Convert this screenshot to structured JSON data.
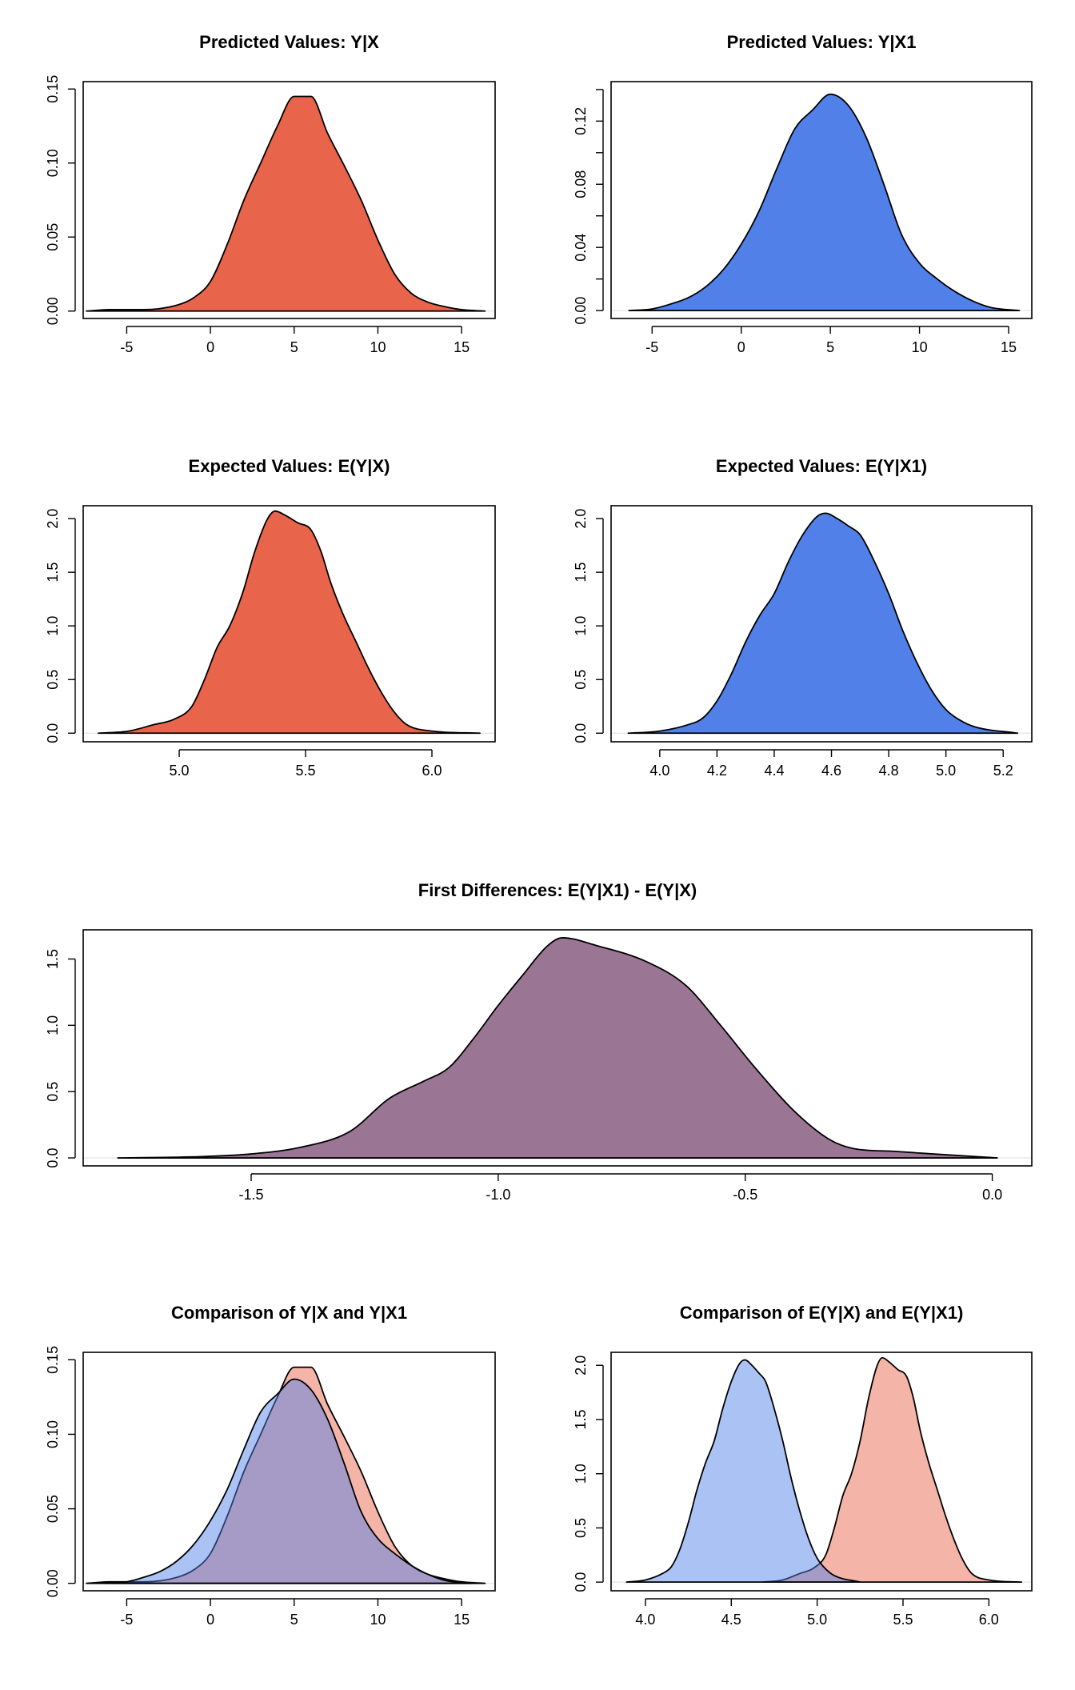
{
  "chart_data": [
    {
      "id": "pv_yx",
      "type": "area",
      "title": "Predicted Values: Y|X",
      "xlabel": "",
      "ylabel": "",
      "xlim": [
        -7.6,
        17.0
      ],
      "ylim": [
        -0.005,
        0.155
      ],
      "xticks": [
        -5,
        0,
        5,
        10,
        15
      ],
      "yticks": [
        0.0,
        0.05,
        0.1,
        0.15
      ],
      "ytick_labels": [
        "0.00",
        "0.05",
        "0.10",
        "0.15"
      ],
      "series": [
        {
          "color": "#e8644a",
          "x": [
            -7.4,
            -6,
            -4,
            -2,
            -1,
            0,
            1,
            2,
            3,
            4,
            5,
            6,
            7,
            8,
            9,
            10,
            11,
            12,
            13,
            14,
            15,
            16.4
          ],
          "y": [
            0.0,
            0.001,
            0.001,
            0.004,
            0.009,
            0.02,
            0.045,
            0.075,
            0.1,
            0.125,
            0.145,
            0.145,
            0.12,
            0.098,
            0.075,
            0.048,
            0.025,
            0.012,
            0.006,
            0.003,
            0.001,
            0.0
          ]
        }
      ]
    },
    {
      "id": "pv_yx1",
      "type": "area",
      "title": "Predicted Values: Y|X1",
      "xlabel": "",
      "ylabel": "",
      "xlim": [
        -7.3,
        16.3
      ],
      "ylim": [
        -0.005,
        0.145
      ],
      "xticks": [
        -5,
        0,
        5,
        10,
        15
      ],
      "yticks": [
        0.0,
        0.02,
        0.04,
        0.06,
        0.08,
        0.1,
        0.12,
        0.14
      ],
      "ytick_labels": [
        "0.00",
        "",
        "0.04",
        "",
        "0.08",
        "",
        "0.12",
        ""
      ],
      "series": [
        {
          "color": "#5080e8",
          "x": [
            -6.3,
            -5,
            -4,
            -3,
            -2,
            -1,
            0,
            1,
            2,
            3,
            4,
            5,
            6,
            7,
            8,
            9,
            10,
            11,
            12,
            13,
            14,
            15.6
          ],
          "y": [
            0.0,
            0.001,
            0.004,
            0.008,
            0.015,
            0.026,
            0.042,
            0.063,
            0.09,
            0.115,
            0.127,
            0.137,
            0.13,
            0.11,
            0.08,
            0.048,
            0.03,
            0.02,
            0.012,
            0.006,
            0.002,
            0.0
          ]
        }
      ]
    },
    {
      "id": "ev_yx",
      "type": "area",
      "title": "Expected Values: E(Y|X)",
      "xlabel": "",
      "ylabel": "",
      "xlim": [
        4.62,
        6.25
      ],
      "ylim": [
        -0.08,
        2.12
      ],
      "xticks": [
        5.0,
        5.5,
        6.0
      ],
      "xtick_labels": [
        "5.0",
        "5.5",
        "6.0"
      ],
      "yticks": [
        0.0,
        0.5,
        1.0,
        1.5,
        2.0
      ],
      "ytick_labels": [
        "0.0",
        "0.5",
        "1.0",
        "1.5",
        "2.0"
      ],
      "series": [
        {
          "color": "#e8644a",
          "x": [
            4.68,
            4.8,
            4.9,
            4.98,
            5.05,
            5.1,
            5.15,
            5.2,
            5.25,
            5.3,
            5.35,
            5.38,
            5.42,
            5.47,
            5.52,
            5.56,
            5.6,
            5.65,
            5.7,
            5.75,
            5.8,
            5.85,
            5.9,
            6.0,
            6.19
          ],
          "y": [
            0.0,
            0.02,
            0.08,
            0.13,
            0.25,
            0.5,
            0.8,
            1.0,
            1.3,
            1.7,
            2.0,
            2.07,
            2.03,
            1.96,
            1.9,
            1.7,
            1.4,
            1.1,
            0.85,
            0.6,
            0.38,
            0.2,
            0.08,
            0.02,
            0.0
          ]
        }
      ]
    },
    {
      "id": "ev_yx1",
      "type": "area",
      "title": "Expected Values: E(Y|X1)",
      "xlabel": "",
      "ylabel": "",
      "xlim": [
        3.83,
        5.3
      ],
      "ylim": [
        -0.08,
        2.12
      ],
      "xticks": [
        4.0,
        4.2,
        4.4,
        4.6,
        4.8,
        5.0,
        5.2
      ],
      "xtick_labels": [
        "4.0",
        "4.2",
        "4.4",
        "4.6",
        "4.8",
        "5.0",
        "5.2"
      ],
      "yticks": [
        0.0,
        0.5,
        1.0,
        1.5,
        2.0
      ],
      "ytick_labels": [
        "0.0",
        "0.5",
        "1.0",
        "1.5",
        "2.0"
      ],
      "series": [
        {
          "color": "#5080e8",
          "x": [
            3.89,
            4.0,
            4.1,
            4.15,
            4.2,
            4.25,
            4.3,
            4.35,
            4.4,
            4.45,
            4.5,
            4.55,
            4.58,
            4.62,
            4.66,
            4.7,
            4.75,
            4.8,
            4.85,
            4.9,
            4.95,
            5.0,
            5.05,
            5.1,
            5.25
          ],
          "y": [
            0.0,
            0.02,
            0.08,
            0.14,
            0.3,
            0.55,
            0.85,
            1.1,
            1.3,
            1.6,
            1.85,
            2.02,
            2.05,
            2.0,
            1.93,
            1.85,
            1.6,
            1.3,
            0.95,
            0.65,
            0.4,
            0.22,
            0.12,
            0.06,
            0.0
          ]
        }
      ]
    },
    {
      "id": "fd",
      "type": "area",
      "title": "First Differences: E(Y|X1) - E(Y|X)",
      "xlabel": "",
      "ylabel": "",
      "xlim": [
        -1.84,
        0.08
      ],
      "ylim": [
        -0.06,
        1.72
      ],
      "xticks": [
        -1.5,
        -1.0,
        -0.5,
        0.0
      ],
      "xtick_labels": [
        "-1.5",
        "-1.0",
        "-0.5",
        "0.0"
      ],
      "yticks": [
        0.0,
        0.5,
        1.0,
        1.5
      ],
      "ytick_labels": [
        "0.0",
        "0.5",
        "1.0",
        "1.5"
      ],
      "series": [
        {
          "color": "#9b7594",
          "x": [
            -1.77,
            -1.6,
            -1.5,
            -1.4,
            -1.3,
            -1.22,
            -1.15,
            -1.1,
            -1.05,
            -1.0,
            -0.95,
            -0.9,
            -0.87,
            -0.8,
            -0.7,
            -0.62,
            -0.55,
            -0.48,
            -0.4,
            -0.33,
            -0.28,
            -0.2,
            -0.12,
            0.01
          ],
          "y": [
            0.0,
            0.01,
            0.03,
            0.08,
            0.2,
            0.45,
            0.58,
            0.68,
            0.9,
            1.15,
            1.38,
            1.6,
            1.66,
            1.6,
            1.48,
            1.3,
            1.0,
            0.68,
            0.35,
            0.14,
            0.07,
            0.05,
            0.03,
            0.0
          ]
        }
      ]
    },
    {
      "id": "cmp_pv",
      "type": "area",
      "title": "Comparison of Y|X and Y|X1",
      "xlabel": "",
      "ylabel": "",
      "xlim": [
        -7.6,
        17.0
      ],
      "ylim": [
        -0.005,
        0.155
      ],
      "xticks": [
        -5,
        0,
        5,
        10,
        15
      ],
      "yticks": [
        0.0,
        0.05,
        0.1,
        0.15
      ],
      "ytick_labels": [
        "0.00",
        "0.05",
        "0.10",
        "0.15"
      ],
      "series": [
        {
          "color": "#e8644a",
          "x": [
            -7.4,
            -6,
            -4,
            -2,
            -1,
            0,
            1,
            2,
            3,
            4,
            5,
            6,
            7,
            8,
            9,
            10,
            11,
            12,
            13,
            14,
            15,
            16.4
          ],
          "y": [
            0.0,
            0.001,
            0.001,
            0.004,
            0.009,
            0.02,
            0.045,
            0.075,
            0.1,
            0.125,
            0.145,
            0.145,
            0.12,
            0.098,
            0.075,
            0.048,
            0.025,
            0.012,
            0.006,
            0.003,
            0.001,
            0.0
          ]
        },
        {
          "color": "#5080e8",
          "x": [
            -6.3,
            -5,
            -4,
            -3,
            -2,
            -1,
            0,
            1,
            2,
            3,
            4,
            5,
            6,
            7,
            8,
            9,
            10,
            11,
            12,
            13,
            14,
            15.6
          ],
          "y": [
            0.0,
            0.001,
            0.004,
            0.008,
            0.015,
            0.026,
            0.042,
            0.063,
            0.09,
            0.115,
            0.127,
            0.137,
            0.13,
            0.11,
            0.08,
            0.048,
            0.03,
            0.02,
            0.012,
            0.006,
            0.002,
            0.0
          ]
        }
      ]
    },
    {
      "id": "cmp_ev",
      "type": "area",
      "title": "Comparison of E(Y|X) and E(Y|X1)",
      "xlabel": "",
      "ylabel": "",
      "xlim": [
        3.8,
        6.25
      ],
      "ylim": [
        -0.08,
        2.12
      ],
      "xticks": [
        4.0,
        4.5,
        5.0,
        5.5,
        6.0
      ],
      "xtick_labels": [
        "4.0",
        "4.5",
        "5.0",
        "5.5",
        "6.0"
      ],
      "yticks": [
        0.0,
        0.5,
        1.0,
        1.5,
        2.0
      ],
      "ytick_labels": [
        "0.0",
        "0.5",
        "1.0",
        "1.5",
        "2.0"
      ],
      "series": [
        {
          "color": "#e8644a",
          "x": [
            4.68,
            4.8,
            4.9,
            4.98,
            5.05,
            5.1,
            5.15,
            5.2,
            5.25,
            5.3,
            5.35,
            5.38,
            5.42,
            5.47,
            5.52,
            5.56,
            5.6,
            5.65,
            5.7,
            5.75,
            5.8,
            5.85,
            5.9,
            6.0,
            6.19
          ],
          "y": [
            0.0,
            0.02,
            0.08,
            0.13,
            0.25,
            0.5,
            0.8,
            1.0,
            1.3,
            1.7,
            2.0,
            2.07,
            2.03,
            1.96,
            1.9,
            1.7,
            1.4,
            1.1,
            0.85,
            0.6,
            0.38,
            0.2,
            0.08,
            0.02,
            0.0
          ]
        },
        {
          "color": "#5080e8",
          "x": [
            3.89,
            4.0,
            4.1,
            4.15,
            4.2,
            4.25,
            4.3,
            4.35,
            4.4,
            4.45,
            4.5,
            4.55,
            4.58,
            4.62,
            4.66,
            4.7,
            4.75,
            4.8,
            4.85,
            4.9,
            4.95,
            5.0,
            5.05,
            5.1,
            5.25
          ],
          "y": [
            0.0,
            0.02,
            0.08,
            0.14,
            0.3,
            0.55,
            0.85,
            1.1,
            1.3,
            1.6,
            1.85,
            2.02,
            2.05,
            2.0,
            1.93,
            1.85,
            1.6,
            1.3,
            0.95,
            0.65,
            0.4,
            0.22,
            0.12,
            0.06,
            0.0
          ]
        }
      ]
    }
  ]
}
